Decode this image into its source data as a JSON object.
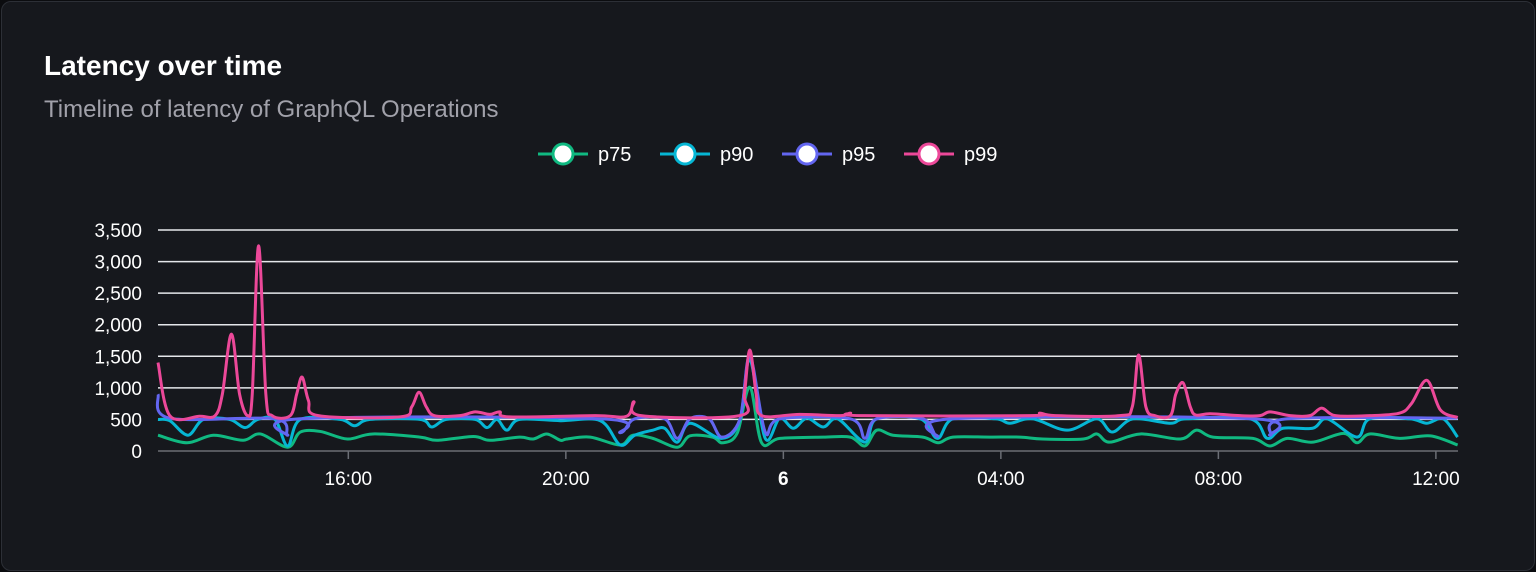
{
  "header": {
    "title": "Latency over time",
    "subtitle": "Timeline of latency of GraphQL Operations"
  },
  "chart_data": {
    "type": "line",
    "title": "Latency over time",
    "subtitle": "Timeline of latency of GraphQL Operations",
    "xlabel": "",
    "ylabel": "",
    "ylim": [
      0,
      3500
    ],
    "y_ticks": [
      "0",
      "500",
      "1,000",
      "1,500",
      "2,000",
      "2,500",
      "3,000",
      "3,500"
    ],
    "x_ticks": [
      {
        "time": "16:00",
        "label": "16:00"
      },
      {
        "time": "20:00",
        "label": "20:00"
      },
      {
        "time": "00:00",
        "label": "6",
        "bold": true
      },
      {
        "time": "04:00",
        "label": "04:00"
      },
      {
        "time": "08:00",
        "label": "08:00"
      },
      {
        "time": "12:00",
        "label": "12:00"
      }
    ],
    "xlim": [
      "12:30",
      "12:30"
    ],
    "grid": true,
    "legend": "top-center",
    "series": [
      {
        "name": "p75",
        "color": "#10b981",
        "points": [
          [
            "12:30",
            250
          ],
          [
            "13:02",
            130
          ],
          [
            "13:31",
            250
          ],
          [
            "14:04",
            170
          ],
          [
            "14:23",
            270
          ],
          [
            "14:53",
            60
          ],
          [
            "15:07",
            300
          ],
          [
            "15:29",
            310
          ],
          [
            "15:59",
            190
          ],
          [
            "16:27",
            270
          ],
          [
            "17:19",
            220
          ],
          [
            "17:38",
            170
          ],
          [
            "18:18",
            230
          ],
          [
            "18:36",
            170
          ],
          [
            "19:09",
            220
          ],
          [
            "19:24",
            190
          ],
          [
            "19:39",
            270
          ],
          [
            "19:54",
            170
          ],
          [
            "20:01",
            190
          ],
          [
            "20:27",
            220
          ],
          [
            "21:00",
            95
          ],
          [
            "21:14",
            250
          ],
          [
            "21:36",
            200
          ],
          [
            "22:03",
            60
          ],
          [
            "22:17",
            240
          ],
          [
            "22:42",
            220
          ],
          [
            "22:53",
            130
          ],
          [
            "23:09",
            280
          ],
          [
            "23:23",
            1010
          ],
          [
            "23:36",
            130
          ],
          [
            "23:56",
            200
          ],
          [
            "00:44",
            220
          ],
          [
            "01:14",
            220
          ],
          [
            "01:30",
            80
          ],
          [
            "01:43",
            330
          ],
          [
            "02:01",
            250
          ],
          [
            "02:34",
            220
          ],
          [
            "02:51",
            130
          ],
          [
            "03:07",
            220
          ],
          [
            "03:48",
            220
          ],
          [
            "04:21",
            220
          ],
          [
            "04:46",
            190
          ],
          [
            "05:31",
            190
          ],
          [
            "05:46",
            270
          ],
          [
            "06:00",
            140
          ],
          [
            "06:34",
            270
          ],
          [
            "07:18",
            190
          ],
          [
            "07:36",
            330
          ],
          [
            "07:54",
            220
          ],
          [
            "08:38",
            200
          ],
          [
            "08:57",
            80
          ],
          [
            "09:16",
            200
          ],
          [
            "09:44",
            140
          ],
          [
            "10:18",
            280
          ],
          [
            "10:33",
            130
          ],
          [
            "10:47",
            270
          ],
          [
            "11:20",
            200
          ],
          [
            "11:54",
            240
          ],
          [
            "12:24",
            95
          ]
        ]
      },
      {
        "name": "p90",
        "color": "#06b6d4",
        "points": [
          [
            "12:30",
            500
          ],
          [
            "12:43",
            480
          ],
          [
            "13:03",
            250
          ],
          [
            "13:20",
            500
          ],
          [
            "13:49",
            500
          ],
          [
            "14:06",
            370
          ],
          [
            "14:20",
            500
          ],
          [
            "14:39",
            500
          ],
          [
            "14:53",
            80
          ],
          [
            "15:07",
            500
          ],
          [
            "15:51",
            500
          ],
          [
            "16:07",
            400
          ],
          [
            "16:24",
            500
          ],
          [
            "17:19",
            500
          ],
          [
            "17:32",
            380
          ],
          [
            "17:48",
            500
          ],
          [
            "18:20",
            500
          ],
          [
            "18:33",
            370
          ],
          [
            "18:44",
            500
          ],
          [
            "18:55",
            330
          ],
          [
            "19:09",
            500
          ],
          [
            "19:54",
            480
          ],
          [
            "20:38",
            480
          ],
          [
            "21:00",
            95
          ],
          [
            "21:16",
            250
          ],
          [
            "21:36",
            330
          ],
          [
            "21:49",
            360
          ],
          [
            "22:03",
            140
          ],
          [
            "22:17",
            440
          ],
          [
            "22:52",
            200
          ],
          [
            "23:12",
            490
          ],
          [
            "23:23",
            1450
          ],
          [
            "23:40",
            200
          ],
          [
            "23:56",
            520
          ],
          [
            "00:11",
            360
          ],
          [
            "00:26",
            520
          ],
          [
            "00:44",
            380
          ],
          [
            "01:00",
            510
          ],
          [
            "01:30",
            140
          ],
          [
            "01:43",
            510
          ],
          [
            "02:31",
            510
          ],
          [
            "02:50",
            200
          ],
          [
            "03:07",
            510
          ],
          [
            "03:54",
            510
          ],
          [
            "04:10",
            440
          ],
          [
            "04:35",
            510
          ],
          [
            "05:13",
            330
          ],
          [
            "05:46",
            510
          ],
          [
            "06:03",
            300
          ],
          [
            "06:26",
            510
          ],
          [
            "07:07",
            440
          ],
          [
            "07:25",
            510
          ],
          [
            "08:35",
            510
          ],
          [
            "08:54",
            200
          ],
          [
            "09:11",
            360
          ],
          [
            "09:44",
            360
          ],
          [
            "10:00",
            510
          ],
          [
            "10:33",
            220
          ],
          [
            "10:47",
            510
          ],
          [
            "11:31",
            510
          ],
          [
            "11:50",
            440
          ],
          [
            "12:08",
            510
          ],
          [
            "12:24",
            220
          ]
        ]
      },
      {
        "name": "p95",
        "color": "#6366f1",
        "points": [
          [
            "12:30",
            900
          ],
          [
            "12:43",
            520
          ],
          [
            "14:39",
            510
          ],
          [
            "14:53",
            250
          ],
          [
            "15:07",
            510
          ],
          [
            "20:38",
            510
          ],
          [
            "21:00",
            290
          ],
          [
            "21:16",
            510
          ],
          [
            "21:49",
            510
          ],
          [
            "22:03",
            200
          ],
          [
            "22:17",
            510
          ],
          [
            "22:38",
            510
          ],
          [
            "22:52",
            220
          ],
          [
            "23:12",
            500
          ],
          [
            "23:23",
            1500
          ],
          [
            "23:40",
            300
          ],
          [
            "23:56",
            510
          ],
          [
            "01:14",
            510
          ],
          [
            "01:30",
            200
          ],
          [
            "01:43",
            510
          ],
          [
            "02:34",
            510
          ],
          [
            "02:50",
            230
          ],
          [
            "03:07",
            510
          ],
          [
            "08:38",
            510
          ],
          [
            "08:57",
            250
          ],
          [
            "09:16",
            510
          ],
          [
            "12:24",
            520
          ]
        ]
      },
      {
        "name": "p99",
        "color": "#ec4899",
        "points": [
          [
            "12:30",
            1400
          ],
          [
            "12:43",
            560
          ],
          [
            "13:16",
            550
          ],
          [
            "13:33",
            560
          ],
          [
            "13:41",
            900
          ],
          [
            "13:51",
            1850
          ],
          [
            "14:00",
            900
          ],
          [
            "14:09",
            560
          ],
          [
            "14:14",
            900
          ],
          [
            "14:21",
            3250
          ],
          [
            "14:29",
            900
          ],
          [
            "14:36",
            560
          ],
          [
            "14:56",
            560
          ],
          [
            "15:03",
            900
          ],
          [
            "15:09",
            1170
          ],
          [
            "15:16",
            800
          ],
          [
            "15:27",
            560
          ],
          [
            "16:57",
            540
          ],
          [
            "17:10",
            700
          ],
          [
            "17:18",
            930
          ],
          [
            "17:26",
            700
          ],
          [
            "17:35",
            560
          ],
          [
            "18:03",
            560
          ],
          [
            "18:20",
            620
          ],
          [
            "18:36",
            580
          ],
          [
            "18:47",
            620
          ],
          [
            "18:58",
            540
          ],
          [
            "20:32",
            560
          ],
          [
            "21:07",
            550
          ],
          [
            "21:15",
            780
          ],
          [
            "21:23",
            560
          ],
          [
            "23:12",
            560
          ],
          [
            "23:17",
            900
          ],
          [
            "23:23",
            1600
          ],
          [
            "23:30",
            900
          ],
          [
            "23:36",
            560
          ],
          [
            "00:18",
            580
          ],
          [
            "01:03",
            560
          ],
          [
            "01:14",
            600
          ],
          [
            "01:25",
            560
          ],
          [
            "04:32",
            560
          ],
          [
            "04:43",
            600
          ],
          [
            "05:00",
            560
          ],
          [
            "06:11",
            560
          ],
          [
            "06:25",
            700
          ],
          [
            "06:32",
            1520
          ],
          [
            "06:40",
            700
          ],
          [
            "06:50",
            560
          ],
          [
            "07:07",
            560
          ],
          [
            "07:13",
            900
          ],
          [
            "07:21",
            1080
          ],
          [
            "07:29",
            700
          ],
          [
            "07:35",
            570
          ],
          [
            "07:51",
            590
          ],
          [
            "08:24",
            560
          ],
          [
            "08:46",
            560
          ],
          [
            "08:57",
            620
          ],
          [
            "09:19",
            560
          ],
          [
            "09:41",
            560
          ],
          [
            "09:54",
            680
          ],
          [
            "10:09",
            560
          ],
          [
            "10:47",
            560
          ],
          [
            "11:20",
            600
          ],
          [
            "11:33",
            750
          ],
          [
            "11:50",
            1120
          ],
          [
            "12:05",
            650
          ],
          [
            "12:24",
            530
          ]
        ]
      }
    ]
  }
}
